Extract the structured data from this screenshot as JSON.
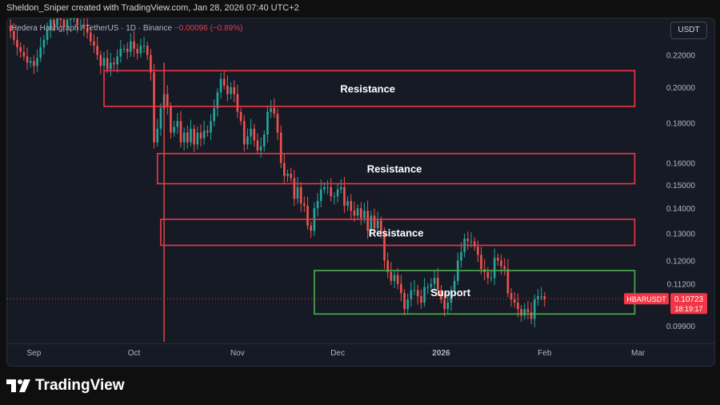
{
  "header": {
    "text": "Sheldon_Sniper created with TradingView.com, Jan 28, 2026 07:40 UTC+2"
  },
  "symbol": {
    "name": "Hedera Hashgraph / TetherUS · 1D · Binance",
    "change": "−0.00096 (−0.89%)"
  },
  "currency_button": {
    "label": "USDT"
  },
  "brand": {
    "name": "TradingView"
  },
  "colors": {
    "up": "#26a69a",
    "down": "#ef5350",
    "resistance_box": "#f23645",
    "support_box": "#4caf50",
    "price_line": "#f23645",
    "axis_text": "#b2b5be",
    "panel_bg": "#161a25"
  },
  "chart_data": {
    "type": "candlestick",
    "symbol_label": "HBARUSDT",
    "last_price": 0.10723,
    "countdown": "18:19:17",
    "y_scale": "log",
    "y_ticks": [
      {
        "value": 0.22,
        "label": "0.22000"
      },
      {
        "value": 0.2,
        "label": "0.20000"
      },
      {
        "value": 0.18,
        "label": "0.18000"
      },
      {
        "value": 0.16,
        "label": "0.16000"
      },
      {
        "value": 0.15,
        "label": "0.15000"
      },
      {
        "value": 0.14,
        "label": "0.14000"
      },
      {
        "value": 0.13,
        "label": "0.13000"
      },
      {
        "value": 0.12,
        "label": "0.12000"
      },
      {
        "value": 0.112,
        "label": "0.11200"
      },
      {
        "value": 0.099,
        "label": "0.09900"
      }
    ],
    "ylim": [
      0.094,
      0.245
    ],
    "x_ticks": [
      {
        "date": "2025-09-01",
        "label": "Sep"
      },
      {
        "date": "2025-10-01",
        "label": "Oct"
      },
      {
        "date": "2025-11-01",
        "label": "Nov"
      },
      {
        "date": "2025-12-01",
        "label": "Dec"
      },
      {
        "date": "2026-01-01",
        "label": "2026"
      },
      {
        "date": "2026-02-01",
        "label": "Feb"
      },
      {
        "date": "2026-03-01",
        "label": "Mar"
      }
    ],
    "xlim": [
      "2025-08-24",
      "2026-03-09"
    ],
    "candles": {
      "start_date": "2025-08-24",
      "closes": [
        0.24,
        0.236,
        0.23,
        0.225,
        0.222,
        0.219,
        0.215,
        0.216,
        0.213,
        0.218,
        0.225,
        0.23,
        0.237,
        0.244,
        0.24,
        0.246,
        0.244,
        0.239,
        0.244,
        0.245,
        0.245,
        0.24,
        0.24,
        0.238,
        0.235,
        0.229,
        0.226,
        0.22,
        0.213,
        0.218,
        0.211,
        0.215,
        0.214,
        0.219,
        0.224,
        0.224,
        0.222,
        0.229,
        0.224,
        0.221,
        0.226,
        0.226,
        0.22,
        0.209,
        0.17,
        0.177,
        0.188,
        0.196,
        0.189,
        0.175,
        0.178,
        0.181,
        0.17,
        0.175,
        0.17,
        0.177,
        0.169,
        0.175,
        0.172,
        0.176,
        0.175,
        0.181,
        0.188,
        0.197,
        0.205,
        0.201,
        0.196,
        0.2,
        0.196,
        0.186,
        0.181,
        0.169,
        0.173,
        0.177,
        0.171,
        0.166,
        0.168,
        0.174,
        0.186,
        0.188,
        0.185,
        0.175,
        0.16,
        0.154,
        0.155,
        0.153,
        0.144,
        0.149,
        0.142,
        0.141,
        0.133,
        0.131,
        0.14,
        0.143,
        0.148,
        0.149,
        0.149,
        0.145,
        0.145,
        0.148,
        0.149,
        0.141,
        0.143,
        0.139,
        0.137,
        0.14,
        0.136,
        0.139,
        0.131,
        0.137,
        0.132,
        0.135,
        0.13,
        0.12,
        0.116,
        0.113,
        0.115,
        0.112,
        0.109,
        0.104,
        0.107,
        0.11,
        0.11,
        0.108,
        0.106,
        0.111,
        0.111,
        0.112,
        0.114,
        0.11,
        0.107,
        0.104,
        0.106,
        0.11,
        0.113,
        0.12,
        0.123,
        0.128,
        0.127,
        0.127,
        0.125,
        0.122,
        0.117,
        0.116,
        0.114,
        0.114,
        0.121,
        0.12,
        0.118,
        0.117,
        0.109,
        0.107,
        0.106,
        0.104,
        0.102,
        0.104,
        0.103,
        0.101,
        0.107,
        0.108,
        0.108,
        0.107
      ]
    },
    "price_line": 0.10723,
    "annotations": [
      {
        "kind": "resistance",
        "label": "Resistance",
        "top": 0.21,
        "bottom": 0.189,
        "from": "2025-09-22",
        "to": "2026-02-28"
      },
      {
        "kind": "resistance",
        "label": "Resistance",
        "top": 0.1645,
        "bottom": 0.1505,
        "from": "2025-10-08",
        "to": "2026-02-28"
      },
      {
        "kind": "resistance",
        "label": "Resistance",
        "top": 0.1355,
        "bottom": 0.1255,
        "from": "2025-10-09",
        "to": "2026-02-28"
      },
      {
        "kind": "support",
        "label": "Support",
        "top": 0.1165,
        "bottom": 0.1025,
        "from": "2025-11-24",
        "to": "2026-02-28"
      }
    ],
    "title": "",
    "xlabel": "",
    "ylabel": ""
  }
}
